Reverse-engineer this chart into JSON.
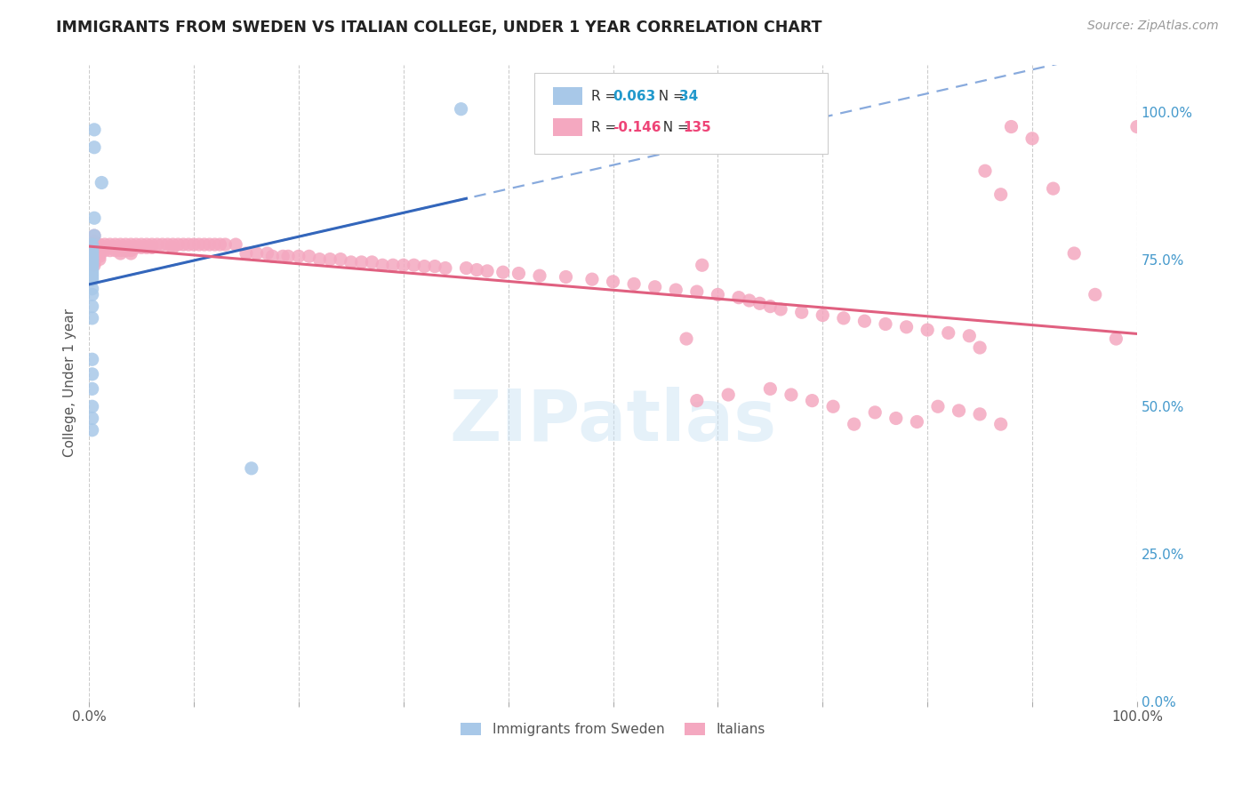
{
  "title": "IMMIGRANTS FROM SWEDEN VS ITALIAN COLLEGE, UNDER 1 YEAR CORRELATION CHART",
  "source": "Source: ZipAtlas.com",
  "ylabel": "College, Under 1 year",
  "right_yticks": [
    "100.0%",
    "75.0%",
    "50.0%",
    "25.0%",
    "0.0%"
  ],
  "right_ytick_vals": [
    1.0,
    0.75,
    0.5,
    0.25,
    0.0
  ],
  "xlim": [
    0.0,
    1.0
  ],
  "ylim": [
    0.0,
    1.08
  ],
  "legend_color1": "#a8c8e8",
  "legend_color2": "#f4a8c0",
  "watermark": "ZIPatlas",
  "blue_scatter_color": "#a8c8e8",
  "pink_scatter_color": "#f4a8c0",
  "blue_line_color": "#3366bb",
  "pink_line_color": "#e06080",
  "blue_dashed_color": "#88aadd",
  "legend1_label": "Immigrants from Sweden",
  "legend2_label": "Italians",
  "blue_points_x": [
    0.005,
    0.005,
    0.012,
    0.005,
    0.005,
    0.003,
    0.003,
    0.003,
    0.003,
    0.003,
    0.003,
    0.003,
    0.003,
    0.003,
    0.003,
    0.003,
    0.003,
    0.003,
    0.003,
    0.003,
    0.003,
    0.003,
    0.003,
    0.003,
    0.003,
    0.003,
    0.003,
    0.003,
    0.003,
    0.003,
    0.003,
    0.003,
    0.355,
    0.155
  ],
  "blue_points_y": [
    0.97,
    0.94,
    0.88,
    0.82,
    0.79,
    0.775,
    0.77,
    0.765,
    0.762,
    0.758,
    0.755,
    0.752,
    0.75,
    0.748,
    0.745,
    0.742,
    0.74,
    0.735,
    0.73,
    0.725,
    0.72,
    0.715,
    0.7,
    0.69,
    0.67,
    0.65,
    0.58,
    0.555,
    0.53,
    0.5,
    0.48,
    0.46,
    1.005,
    0.395
  ],
  "pink_points_x": [
    0.005,
    0.005,
    0.005,
    0.005,
    0.005,
    0.005,
    0.005,
    0.005,
    0.005,
    0.005,
    0.01,
    0.01,
    0.01,
    0.01,
    0.01,
    0.01,
    0.015,
    0.015,
    0.015,
    0.02,
    0.02,
    0.02,
    0.025,
    0.025,
    0.025,
    0.03,
    0.03,
    0.03,
    0.03,
    0.035,
    0.035,
    0.035,
    0.04,
    0.04,
    0.04,
    0.04,
    0.045,
    0.045,
    0.05,
    0.05,
    0.055,
    0.055,
    0.06,
    0.06,
    0.065,
    0.07,
    0.075,
    0.08,
    0.08,
    0.085,
    0.09,
    0.095,
    0.1,
    0.105,
    0.11,
    0.115,
    0.12,
    0.125,
    0.13,
    0.14,
    0.15,
    0.16,
    0.17,
    0.175,
    0.185,
    0.19,
    0.2,
    0.21,
    0.22,
    0.23,
    0.24,
    0.25,
    0.26,
    0.27,
    0.28,
    0.29,
    0.3,
    0.31,
    0.32,
    0.33,
    0.34,
    0.36,
    0.37,
    0.38,
    0.395,
    0.41,
    0.43,
    0.455,
    0.48,
    0.5,
    0.52,
    0.54,
    0.56,
    0.58,
    0.585,
    0.6,
    0.62,
    0.63,
    0.64,
    0.65,
    0.66,
    0.68,
    0.7,
    0.72,
    0.74,
    0.76,
    0.78,
    0.8,
    0.82,
    0.84,
    0.855,
    0.87,
    0.88,
    0.9,
    0.92,
    0.94,
    0.96,
    0.98,
    1.0,
    0.57,
    0.73,
    0.85,
    0.58,
    0.61,
    0.65,
    0.67,
    0.69,
    0.71,
    0.75,
    0.77,
    0.79,
    0.81,
    0.83,
    0.85,
    0.87
  ],
  "pink_points_y": [
    0.79,
    0.78,
    0.775,
    0.77,
    0.765,
    0.76,
    0.755,
    0.75,
    0.745,
    0.74,
    0.775,
    0.77,
    0.765,
    0.76,
    0.755,
    0.75,
    0.775,
    0.77,
    0.765,
    0.775,
    0.77,
    0.765,
    0.775,
    0.77,
    0.765,
    0.775,
    0.77,
    0.765,
    0.76,
    0.775,
    0.77,
    0.765,
    0.775,
    0.77,
    0.765,
    0.76,
    0.775,
    0.77,
    0.775,
    0.77,
    0.775,
    0.77,
    0.775,
    0.77,
    0.775,
    0.775,
    0.775,
    0.775,
    0.77,
    0.775,
    0.775,
    0.775,
    0.775,
    0.775,
    0.775,
    0.775,
    0.775,
    0.775,
    0.775,
    0.775,
    0.76,
    0.76,
    0.76,
    0.755,
    0.755,
    0.755,
    0.755,
    0.755,
    0.75,
    0.75,
    0.75,
    0.745,
    0.745,
    0.745,
    0.74,
    0.74,
    0.74,
    0.74,
    0.738,
    0.738,
    0.735,
    0.735,
    0.732,
    0.73,
    0.728,
    0.726,
    0.722,
    0.72,
    0.716,
    0.712,
    0.708,
    0.703,
    0.698,
    0.695,
    0.74,
    0.69,
    0.685,
    0.68,
    0.675,
    0.67,
    0.665,
    0.66,
    0.655,
    0.65,
    0.645,
    0.64,
    0.635,
    0.63,
    0.625,
    0.62,
    0.9,
    0.86,
    0.975,
    0.955,
    0.87,
    0.76,
    0.69,
    0.615,
    0.975,
    0.615,
    0.47,
    0.6,
    0.51,
    0.52,
    0.53,
    0.52,
    0.51,
    0.5,
    0.49,
    0.48,
    0.474,
    0.5,
    0.493,
    0.487,
    0.47
  ]
}
